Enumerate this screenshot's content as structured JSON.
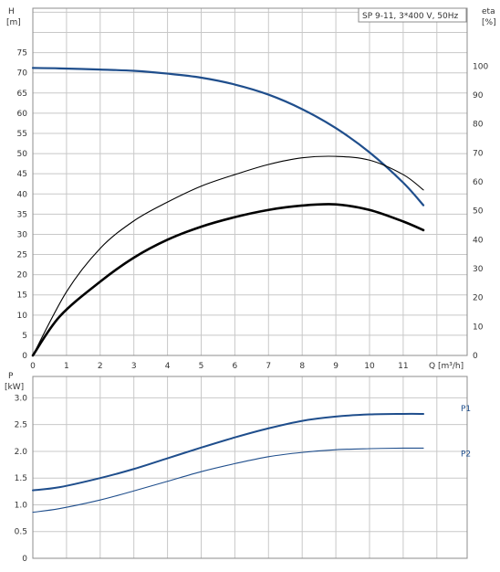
{
  "chart_data": [
    {
      "type": "line",
      "title": "SP 9-11, 3*400 V, 50Hz",
      "xlabel": "Q [m³/h]",
      "ylabel": "H",
      "yunit": "[m]",
      "y2label": "eta",
      "y2unit": "[%]",
      "xlim": [
        0,
        12.9
      ],
      "ylim": [
        0,
        86
      ],
      "y2lim": [
        0,
        120
      ],
      "x_ticks": [
        "0",
        "1",
        "2",
        "3",
        "4",
        "5",
        "6",
        "7",
        "8",
        "9",
        "10",
        "11"
      ],
      "y_ticks": [
        "0",
        "5",
        "10",
        "15",
        "20",
        "25",
        "30",
        "35",
        "40",
        "45",
        "50",
        "55",
        "60",
        "65",
        "70",
        "75"
      ],
      "y2_ticks": [
        "0",
        "10",
        "20",
        "30",
        "40",
        "50",
        "60",
        "70",
        "80",
        "90",
        "100"
      ],
      "grid": true,
      "series": [
        {
          "name": "H",
          "axis": "left",
          "color": "#1f4e8c",
          "x": [
            0,
            0.8,
            2,
            3,
            4,
            5,
            6,
            7,
            8,
            9,
            10,
            11,
            11.6
          ],
          "y": [
            71.2,
            71.1,
            70.8,
            70.5,
            69.8,
            68.8,
            67.1,
            64.6,
            61.0,
            56.3,
            50.3,
            42.8,
            37.2
          ]
        },
        {
          "name": "eta",
          "axis": "right",
          "color": "#000000",
          "x": [
            0,
            1,
            2,
            3,
            4,
            5,
            6,
            7,
            8,
            9,
            10,
            11,
            11.6
          ],
          "y": [
            0,
            22,
            37,
            46.5,
            53,
            58.5,
            62.5,
            66,
            68.3,
            68.8,
            67.5,
            62.5,
            57.2
          ]
        },
        {
          "name": "eta",
          "axis": "right",
          "color": "#000000",
          "x": [
            0,
            0.8,
            2,
            3,
            4,
            5,
            6,
            7,
            8,
            9,
            10,
            11,
            11.6
          ],
          "y": [
            0,
            13.5,
            25.5,
            33.8,
            40,
            44.5,
            47.8,
            50.3,
            51.8,
            52.2,
            50.3,
            46.3,
            43.3
          ]
        }
      ]
    },
    {
      "type": "line",
      "ylabel": "P",
      "yunit": "[kW]",
      "xlim": [
        0,
        12.9
      ],
      "ylim": [
        0,
        3.4
      ],
      "y_ticks": [
        "0",
        "0.5",
        "1.0",
        "1.5",
        "2.0",
        "2.5",
        "3.0"
      ],
      "grid": true,
      "series": [
        {
          "name": "P1",
          "color": "#1f4e8c",
          "x": [
            0,
            0.8,
            2,
            3,
            4,
            5,
            6,
            7,
            8,
            9,
            10,
            11,
            11.6
          ],
          "y": [
            1.27,
            1.33,
            1.5,
            1.67,
            1.87,
            2.07,
            2.26,
            2.43,
            2.57,
            2.65,
            2.69,
            2.7,
            2.7
          ]
        },
        {
          "name": "P2",
          "color": "#1f4e8c",
          "x": [
            0,
            0.8,
            2,
            3,
            4,
            5,
            6,
            7,
            8,
            9,
            10,
            11,
            11.6
          ],
          "y": [
            0.86,
            0.93,
            1.09,
            1.26,
            1.44,
            1.62,
            1.77,
            1.9,
            1.98,
            2.03,
            2.05,
            2.06,
            2.06
          ]
        }
      ]
    }
  ]
}
